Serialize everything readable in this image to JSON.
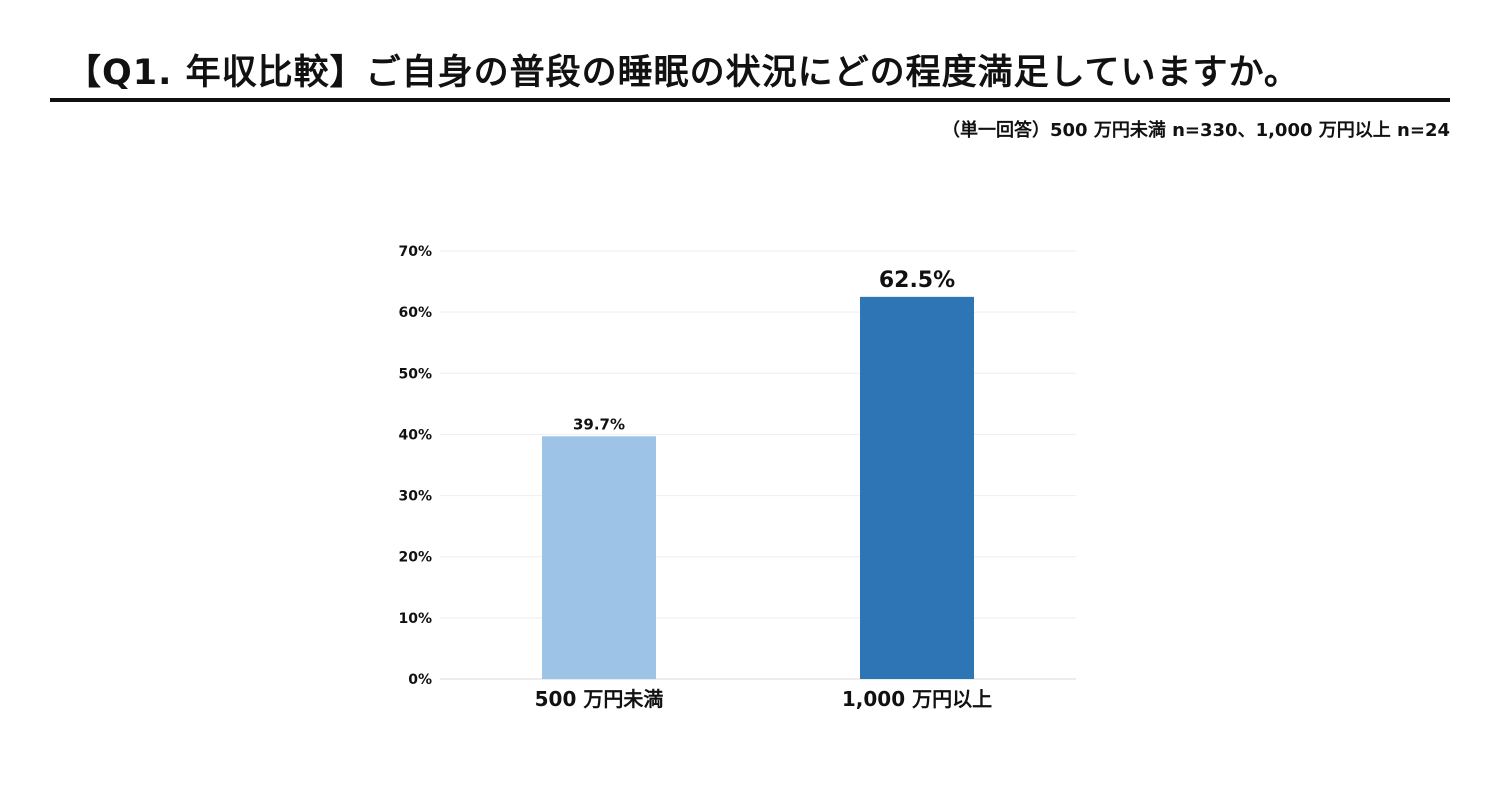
{
  "header": {
    "title": "【Q1. 年収比較】ご自身の普段の睡眠の状況にどの程度満足していますか。",
    "subtitle": "（単一回答）500 万円未満 n=330、1,000 万円以上 n=24"
  },
  "chart_data": {
    "type": "bar",
    "title": "",
    "xlabel": "",
    "ylabel": "",
    "categories": [
      "500 万円未満",
      "1,000 万円以上"
    ],
    "values": [
      39.7,
      62.5
    ],
    "data_labels": [
      "39.7%",
      "62.5%"
    ],
    "bar_colors": [
      "#9dc3e6",
      "#2e75b6"
    ],
    "ylim": [
      0,
      70
    ],
    "yticks": [
      0,
      10,
      20,
      30,
      40,
      50,
      60,
      70
    ],
    "ytick_labels": [
      "0%",
      "10%",
      "20%",
      "30%",
      "40%",
      "50%",
      "60%",
      "70%"
    ],
    "grid": true,
    "legend": "none"
  }
}
